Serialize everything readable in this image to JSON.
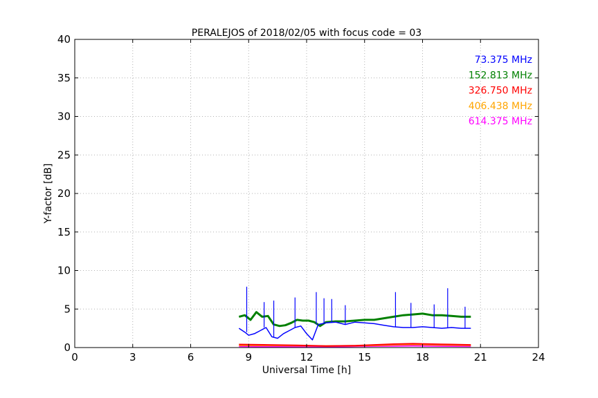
{
  "chart_data": {
    "type": "line",
    "title": "PERALEJOS of 2018/02/05 with focus code = 03",
    "xlabel": "Universal Time [h]",
    "ylabel": "Y-factor [dB]",
    "xlim": [
      0,
      24
    ],
    "ylim": [
      0,
      40
    ],
    "xticks": [
      0,
      3,
      6,
      9,
      12,
      15,
      18,
      21,
      24
    ],
    "yticks": [
      0,
      5,
      10,
      15,
      20,
      25,
      30,
      35,
      40
    ],
    "xtick_labels": [
      "0",
      "3",
      "6",
      "9",
      "12",
      "15",
      "18",
      "21",
      "24"
    ],
    "ytick_labels": [
      "0",
      "5",
      "10",
      "15",
      "20",
      "25",
      "30",
      "35",
      "40"
    ],
    "grid": true,
    "legend_position": "top-right",
    "series": [
      {
        "name": "73.375 MHz",
        "color": "#0000ff",
        "x": [
          8.5,
          8.8,
          9.0,
          9.3,
          9.6,
          9.9,
          10.2,
          10.5,
          10.8,
          11.1,
          11.4,
          11.7,
          12.0,
          12.3,
          12.6,
          13.0,
          13.5,
          14.0,
          14.5,
          15.0,
          15.5,
          16.0,
          16.5,
          17.0,
          17.5,
          18.0,
          18.5,
          19.0,
          19.5,
          20.0,
          20.5
        ],
        "values": [
          2.5,
          2.0,
          1.6,
          1.8,
          2.2,
          2.6,
          1.4,
          1.2,
          1.8,
          2.2,
          2.6,
          2.8,
          1.8,
          1.0,
          3.0,
          3.2,
          3.3,
          3.0,
          3.3,
          3.2,
          3.1,
          2.9,
          2.7,
          2.6,
          2.6,
          2.7,
          2.6,
          2.5,
          2.6,
          2.5,
          2.5
        ],
        "spikes": [
          {
            "x": 8.9,
            "y": 7.9
          },
          {
            "x": 9.8,
            "y": 5.9
          },
          {
            "x": 10.3,
            "y": 6.1
          },
          {
            "x": 11.4,
            "y": 6.5
          },
          {
            "x": 12.5,
            "y": 7.2
          },
          {
            "x": 12.9,
            "y": 6.4
          },
          {
            "x": 13.3,
            "y": 6.3
          },
          {
            "x": 14.0,
            "y": 5.5
          },
          {
            "x": 16.6,
            "y": 7.2
          },
          {
            "x": 17.4,
            "y": 5.8
          },
          {
            "x": 18.6,
            "y": 5.6
          },
          {
            "x": 19.3,
            "y": 7.7
          },
          {
            "x": 20.2,
            "y": 5.3
          }
        ]
      },
      {
        "name": "152.813 MHz",
        "color": "#008000",
        "x": [
          8.5,
          8.8,
          9.1,
          9.4,
          9.7,
          10.0,
          10.3,
          10.6,
          10.9,
          11.2,
          11.5,
          11.8,
          12.1,
          12.4,
          12.7,
          13.0,
          13.5,
          14.0,
          14.5,
          15.0,
          15.5,
          16.0,
          16.5,
          17.0,
          17.5,
          18.0,
          18.5,
          19.0,
          19.5,
          20.0,
          20.5
        ],
        "values": [
          4.0,
          4.2,
          3.6,
          4.6,
          4.0,
          4.1,
          3.0,
          2.8,
          2.9,
          3.2,
          3.6,
          3.5,
          3.5,
          3.3,
          2.8,
          3.3,
          3.4,
          3.4,
          3.5,
          3.6,
          3.6,
          3.8,
          4.0,
          4.2,
          4.3,
          4.4,
          4.2,
          4.2,
          4.1,
          4.0,
          4.0
        ]
      },
      {
        "name": "326.750 MHz",
        "color": "#ff0000",
        "x": [
          8.5,
          10.0,
          11.5,
          13.0,
          14.5,
          15.5,
          16.5,
          17.5,
          18.5,
          19.5,
          20.5
        ],
        "values": [
          0.4,
          0.35,
          0.3,
          0.2,
          0.25,
          0.35,
          0.45,
          0.5,
          0.45,
          0.4,
          0.35
        ]
      },
      {
        "name": "406.438 MHz",
        "color": "#ffa500",
        "x": [
          8.5,
          10.0,
          11.5,
          13.0,
          14.5,
          15.5,
          16.5,
          17.5,
          18.5,
          19.5,
          20.5
        ],
        "values": [
          0.3,
          0.28,
          0.25,
          0.2,
          0.22,
          0.28,
          0.35,
          0.4,
          0.35,
          0.32,
          0.3
        ]
      },
      {
        "name": "614.375 MHz",
        "color": "#ff00ff",
        "x": [
          8.5,
          10.0,
          11.5,
          13.0,
          14.5,
          15.5,
          16.5,
          17.5,
          18.5,
          19.5,
          20.5
        ],
        "values": [
          0.15,
          0.12,
          0.1,
          0.12,
          0.15,
          0.18,
          0.2,
          0.22,
          0.2,
          0.18,
          0.15
        ]
      }
    ]
  }
}
